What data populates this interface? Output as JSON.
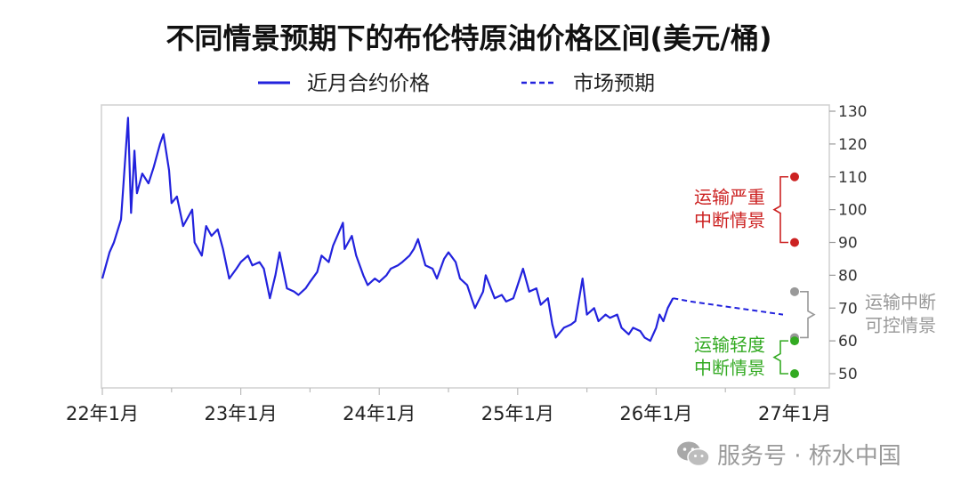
{
  "chart_data": {
    "type": "line",
    "title": "不同情景预期下的布伦特原油价格区间(美元/桶)",
    "xlabel": "",
    "ylabel": "",
    "x_tick_labels": [
      "22年1月",
      "23年1月",
      "24年1月",
      "25年1月",
      "26年1月",
      "27年1月"
    ],
    "y_ticks": [
      50,
      60,
      70,
      80,
      90,
      100,
      110,
      120,
      130
    ],
    "ylim": [
      47,
      131
    ],
    "xlim": [
      "2022-01",
      "2027-01"
    ],
    "legend_position": "top",
    "grid": false,
    "series": [
      {
        "name": "近月合约价格",
        "style": "solid",
        "color": "#2222dd",
        "points": [
          [
            "2022-01",
            79
          ],
          [
            "2022-01-20",
            87
          ],
          [
            "2022-02",
            90
          ],
          [
            "2022-02-20",
            97
          ],
          [
            "2022-03-08",
            128
          ],
          [
            "2022-03-16",
            99
          ],
          [
            "2022-03-25",
            118
          ],
          [
            "2022-04",
            105
          ],
          [
            "2022-04-15",
            111
          ],
          [
            "2022-05",
            108
          ],
          [
            "2022-05-15",
            113
          ],
          [
            "2022-06",
            120
          ],
          [
            "2022-06-10",
            123
          ],
          [
            "2022-06-25",
            112
          ],
          [
            "2022-07",
            102
          ],
          [
            "2022-07-15",
            104
          ],
          [
            "2022-08",
            95
          ],
          [
            "2022-08-25",
            100
          ],
          [
            "2022-09",
            90
          ],
          [
            "2022-09-20",
            86
          ],
          [
            "2022-10",
            95
          ],
          [
            "2022-10-15",
            92
          ],
          [
            "2022-11",
            94
          ],
          [
            "2022-11-15",
            88
          ],
          [
            "2022-12",
            79
          ],
          [
            "2022-12-20",
            82
          ],
          [
            "2023-01",
            84
          ],
          [
            "2023-01-20",
            86
          ],
          [
            "2023-02",
            83
          ],
          [
            "2023-02-20",
            84
          ],
          [
            "2023-03",
            82
          ],
          [
            "2023-03-17",
            73
          ],
          [
            "2023-04",
            80
          ],
          [
            "2023-04-12",
            87
          ],
          [
            "2023-05",
            76
          ],
          [
            "2023-05-20",
            75
          ],
          [
            "2023-06",
            74
          ],
          [
            "2023-06-20",
            76
          ],
          [
            "2023-07",
            78
          ],
          [
            "2023-07-20",
            81
          ],
          [
            "2023-08",
            86
          ],
          [
            "2023-08-20",
            84
          ],
          [
            "2023-09",
            89
          ],
          [
            "2023-09-27",
            96
          ],
          [
            "2023-10",
            88
          ],
          [
            "2023-10-20",
            92
          ],
          [
            "2023-11",
            86
          ],
          [
            "2023-11-20",
            80
          ],
          [
            "2023-12",
            77
          ],
          [
            "2023-12-20",
            79
          ],
          [
            "2024-01",
            78
          ],
          [
            "2024-01-20",
            80
          ],
          [
            "2024-02",
            82
          ],
          [
            "2024-02-20",
            83
          ],
          [
            "2024-03",
            84
          ],
          [
            "2024-03-20",
            86
          ],
          [
            "2024-04",
            88
          ],
          [
            "2024-04-12",
            91
          ],
          [
            "2024-05",
            83
          ],
          [
            "2024-05-20",
            82
          ],
          [
            "2024-06",
            79
          ],
          [
            "2024-06-20",
            85
          ],
          [
            "2024-07",
            87
          ],
          [
            "2024-07-20",
            84
          ],
          [
            "2024-08",
            79
          ],
          [
            "2024-08-20",
            77
          ],
          [
            "2024-09",
            73
          ],
          [
            "2024-09-10",
            70
          ],
          [
            "2024-10",
            75
          ],
          [
            "2024-10-08",
            80
          ],
          [
            "2024-11",
            73
          ],
          [
            "2024-11-20",
            74
          ],
          [
            "2024-12",
            72
          ],
          [
            "2024-12-20",
            73
          ],
          [
            "2025-01",
            77
          ],
          [
            "2025-01-15",
            82
          ],
          [
            "2025-02",
            75
          ],
          [
            "2025-02-20",
            76
          ],
          [
            "2025-03",
            71
          ],
          [
            "2025-03-20",
            73
          ],
          [
            "2025-04",
            65
          ],
          [
            "2025-04-10",
            61
          ],
          [
            "2025-05",
            64
          ],
          [
            "2025-05-20",
            65
          ],
          [
            "2025-06",
            66
          ],
          [
            "2025-06-20",
            79
          ],
          [
            "2025-07",
            68
          ],
          [
            "2025-07-20",
            70
          ],
          [
            "2025-08",
            66
          ],
          [
            "2025-08-20",
            68
          ],
          [
            "2025-09",
            67
          ],
          [
            "2025-09-20",
            68
          ],
          [
            "2025-10",
            64
          ],
          [
            "2025-10-20",
            62
          ],
          [
            "2025-11",
            64
          ],
          [
            "2025-11-20",
            63
          ],
          [
            "2025-12",
            61
          ],
          [
            "2025-12-16",
            60
          ],
          [
            "2026-01",
            64
          ],
          [
            "2026-01-10",
            68
          ],
          [
            "2026-01-20",
            66
          ],
          [
            "2026-02",
            70
          ],
          [
            "2026-02-15",
            73
          ]
        ]
      },
      {
        "name": "市场预期",
        "style": "dashed",
        "color": "#2222dd",
        "points": [
          [
            "2026-02-15",
            73
          ],
          [
            "2026-04",
            72
          ],
          [
            "2026-06",
            71
          ],
          [
            "2026-08",
            70
          ],
          [
            "2026-10",
            69
          ],
          [
            "2026-12",
            68
          ]
        ]
      }
    ],
    "scenarios": [
      {
        "label_line1": "运输严重",
        "label_line2": "中断情景",
        "color": "#cc2222",
        "low": 90,
        "high": 110,
        "side": "left"
      },
      {
        "label_line1": "运输中断",
        "label_line2": "可控情景",
        "color": "#999999",
        "low": 61,
        "high": 75,
        "side": "right"
      },
      {
        "label_line1": "运输轻度",
        "label_line2": "中断情景",
        "color": "#33aa22",
        "low": 50,
        "high": 60,
        "side": "left"
      }
    ]
  },
  "watermark": {
    "text": "服务号 · 桥水中国",
    "icon": "wechat-icon"
  }
}
